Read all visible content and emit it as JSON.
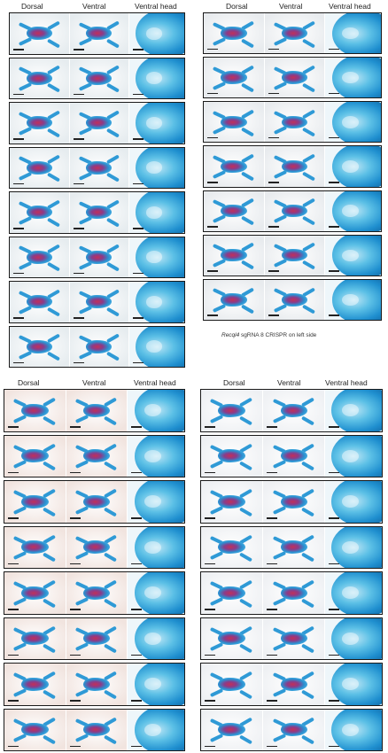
{
  "headers": {
    "dorsal": "Dorsal",
    "ventral": "Ventral",
    "ventral_head": "Ventral head"
  },
  "caption": {
    "gene": "Recql4",
    "text": " sgRNA 8 CRISPR on left side"
  },
  "panels": [
    {
      "bg": "#e6ecef",
      "rows": 8
    },
    {
      "bg": "#e8ebee",
      "rows": 7
    },
    {
      "bg": "#f1e4df",
      "rows": 8
    },
    {
      "bg": "#eef0f3",
      "rows": 8
    }
  ]
}
